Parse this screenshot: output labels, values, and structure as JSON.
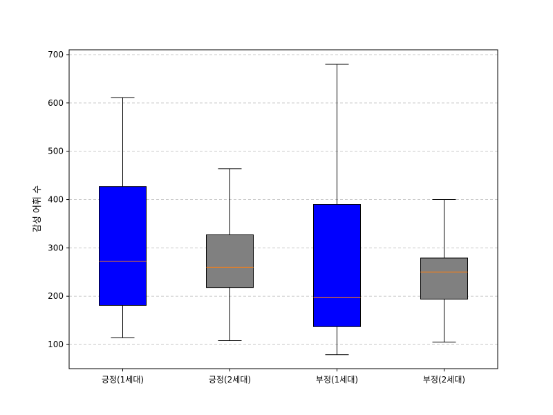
{
  "chart_data": {
    "type": "boxplot",
    "title": "",
    "xlabel": "",
    "ylabel": "감성 어휘 수",
    "ylim": [
      50,
      710
    ],
    "yticks": [
      100,
      200,
      300,
      400,
      500,
      600,
      700
    ],
    "grid": {
      "y": true,
      "x": false,
      "style": "dashed"
    },
    "categories": [
      "긍정(1세대)",
      "긍정(2세대)",
      "부정(1세대)",
      "부정(2세대)"
    ],
    "boxes": [
      {
        "label": "긍정(1세대)",
        "whisker_low": 114,
        "q1": 181,
        "median": 272,
        "q3": 427,
        "whisker_high": 611,
        "color": "#0000ff"
      },
      {
        "label": "긍정(2세대)",
        "whisker_low": 108,
        "q1": 218,
        "median": 260,
        "q3": 327,
        "whisker_high": 464,
        "color": "#808080"
      },
      {
        "label": "부정(1세대)",
        "whisker_low": 79,
        "q1": 137,
        "median": 197,
        "q3": 390,
        "whisker_high": 680,
        "color": "#0000ff"
      },
      {
        "label": "부정(2세대)",
        "whisker_low": 105,
        "q1": 194,
        "median": 250,
        "q3": 279,
        "whisker_high": 400,
        "color": "#808080"
      }
    ],
    "median_color": "#ff7f0e"
  }
}
